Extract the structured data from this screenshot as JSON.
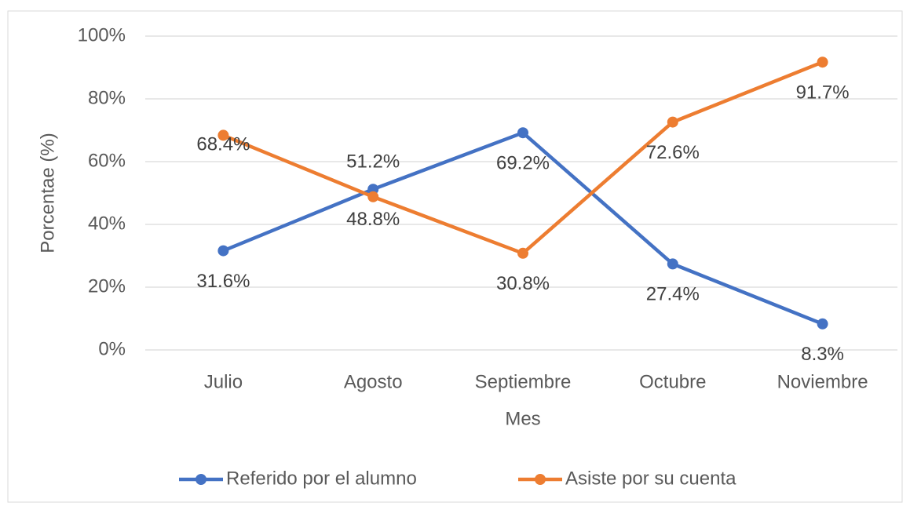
{
  "chart_data": {
    "type": "line",
    "categories": [
      "Julio",
      "Agosto",
      "Septiembre",
      "Octubre",
      "Noviembre"
    ],
    "series": [
      {
        "name": "Referido por el alumno",
        "color": "#4472c4",
        "values": [
          31.6,
          51.2,
          69.2,
          27.4,
          8.3
        ],
        "value_labels": [
          "31.6%",
          "51.2%",
          "69.2%",
          "27.4%",
          "8.3%"
        ]
      },
      {
        "name": "Asiste por su cuenta",
        "color": "#ed7d31",
        "values": [
          68.4,
          48.8,
          30.8,
          72.6,
          91.7
        ],
        "value_labels": [
          "68.4%",
          "48.8%",
          "30.8%",
          "72.6%",
          "91.7%"
        ]
      }
    ],
    "x_label": "Mes",
    "y_label": "Porcentae (%)",
    "ylim": [
      0,
      100
    ],
    "yticks": [
      {
        "value": 0,
        "label": "0%"
      },
      {
        "value": 20,
        "label": "20%"
      },
      {
        "value": 40,
        "label": "40%"
      },
      {
        "value": 60,
        "label": "60%"
      },
      {
        "value": 80,
        "label": "80%"
      },
      {
        "value": 100,
        "label": "100%"
      }
    ],
    "grid": true,
    "legend": "bottom"
  }
}
